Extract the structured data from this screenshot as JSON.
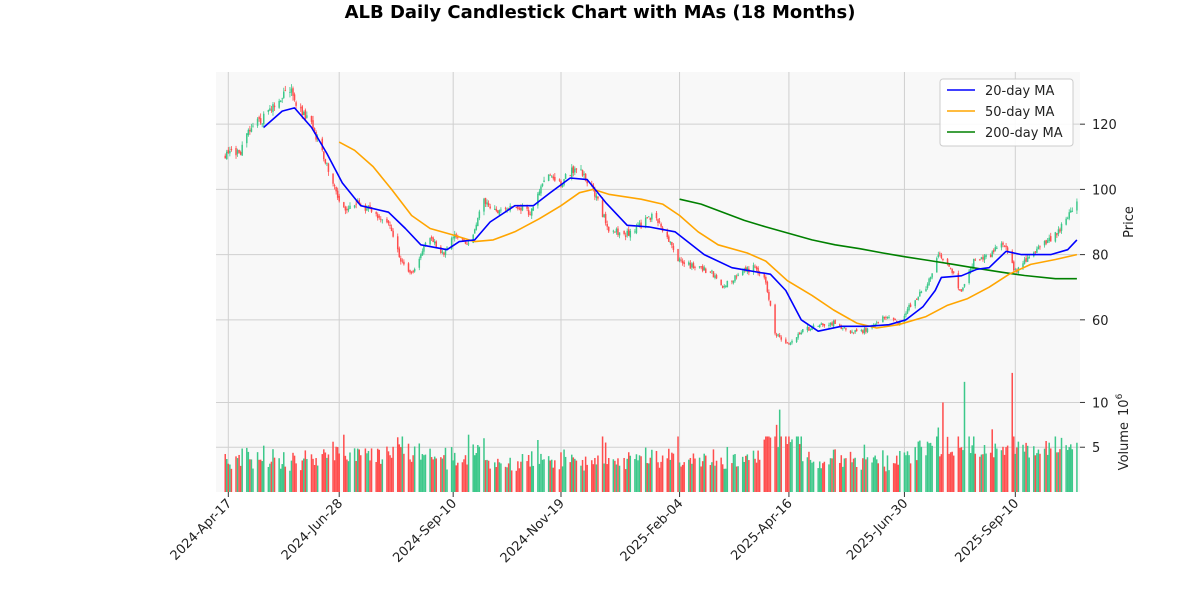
{
  "chart_data": {
    "type": "candlestick",
    "title": "ALB Daily Candlestick Chart with MAs (18 Months)",
    "price_panel": {
      "ylabel": "Price",
      "ylim": [
        44,
        136
      ],
      "yticks": [
        60,
        80,
        100,
        120
      ],
      "grid": true,
      "legend_placement": "top-right"
    },
    "volume_panel": {
      "ylabel": "Volume",
      "ylabel_exponent": "6",
      "units_scale": 1000000,
      "ylim": [
        0,
        13.4
      ],
      "yticks": [
        5,
        10
      ],
      "grid": true
    },
    "x_axis": {
      "range_start": "2024-04-09",
      "range_end": "2025-10-22",
      "ticks": [
        "2024-Apr-17",
        "2024-Jun-28",
        "2024-Sep-10",
        "2024-Nov-19",
        "2025-Feb-04",
        "2025-Apr-16",
        "2025-Jun-30",
        "2025-Sep-10"
      ],
      "tick_dates": [
        "2024-04-17",
        "2024-06-28",
        "2024-09-10",
        "2024-11-19",
        "2025-02-04",
        "2025-04-16",
        "2025-06-30",
        "2025-09-10"
      ]
    },
    "colors": {
      "up": "#3cc88a",
      "down": "#ff4d4d",
      "ma20": "#0000ff",
      "ma50": "#ffa500",
      "ma200": "#008000",
      "panel_bg": "#f8f8f8",
      "grid": "#d0d0d0"
    },
    "close_anchors": [
      [
        "2024-04-15",
        110
      ],
      [
        "2024-04-25",
        112
      ],
      [
        "2024-05-01",
        118
      ],
      [
        "2024-05-10",
        122
      ],
      [
        "2024-05-20",
        128
      ],
      [
        "2024-05-27",
        131
      ],
      [
        "2024-06-03",
        124
      ],
      [
        "2024-06-10",
        120
      ],
      [
        "2024-06-17",
        112
      ],
      [
        "2024-06-24",
        101
      ],
      [
        "2024-07-01",
        94
      ],
      [
        "2024-07-10",
        96
      ],
      [
        "2024-07-20",
        93
      ],
      [
        "2024-07-30",
        90
      ],
      [
        "2024-08-07",
        78
      ],
      [
        "2024-08-15",
        74
      ],
      [
        "2024-08-25",
        86
      ],
      [
        "2024-09-04",
        80
      ],
      [
        "2024-09-10",
        86
      ],
      [
        "2024-09-20",
        83
      ],
      [
        "2024-09-30",
        96
      ],
      [
        "2024-10-10",
        93
      ],
      [
        "2024-10-20",
        95
      ],
      [
        "2024-10-30",
        93
      ],
      [
        "2024-11-08",
        104
      ],
      [
        "2024-11-19",
        102
      ],
      [
        "2024-11-29",
        107
      ],
      [
        "2024-12-06",
        103
      ],
      [
        "2024-12-13",
        96
      ],
      [
        "2024-12-20",
        88
      ],
      [
        "2024-12-31",
        86
      ],
      [
        "2025-01-10",
        89
      ],
      [
        "2025-01-17",
        92
      ],
      [
        "2025-01-24",
        88
      ],
      [
        "2025-02-04",
        78
      ],
      [
        "2025-02-14",
        76
      ],
      [
        "2025-02-24",
        75
      ],
      [
        "2025-03-04",
        70
      ],
      [
        "2025-03-14",
        74
      ],
      [
        "2025-03-24",
        76
      ],
      [
        "2025-04-01",
        72
      ],
      [
        "2025-04-07",
        56
      ],
      [
        "2025-04-16",
        52
      ],
      [
        "2025-04-25",
        57
      ],
      [
        "2025-05-05",
        58
      ],
      [
        "2025-05-15",
        59
      ],
      [
        "2025-05-27",
        56
      ],
      [
        "2025-06-06",
        57
      ],
      [
        "2025-06-16",
        61
      ],
      [
        "2025-06-26",
        59
      ],
      [
        "2025-07-03",
        64
      ],
      [
        "2025-07-14",
        70
      ],
      [
        "2025-07-22",
        80
      ],
      [
        "2025-07-30",
        76
      ],
      [
        "2025-08-06",
        68
      ],
      [
        "2025-08-14",
        78
      ],
      [
        "2025-08-25",
        80
      ],
      [
        "2025-09-02",
        84
      ],
      [
        "2025-09-10",
        75
      ],
      [
        "2025-09-18",
        79
      ],
      [
        "2025-09-26",
        82
      ],
      [
        "2025-10-06",
        86
      ],
      [
        "2025-10-13",
        91
      ],
      [
        "2025-10-20",
        97
      ]
    ],
    "ma_20": [
      [
        "2024-05-10",
        119
      ],
      [
        "2024-05-22",
        124
      ],
      [
        "2024-05-30",
        125
      ],
      [
        "2024-06-10",
        119
      ],
      [
        "2024-06-20",
        111
      ],
      [
        "2024-06-30",
        102
      ],
      [
        "2024-07-12",
        95
      ],
      [
        "2024-07-30",
        93
      ],
      [
        "2024-08-10",
        88
      ],
      [
        "2024-08-20",
        83
      ],
      [
        "2024-09-06",
        81.5
      ],
      [
        "2024-09-14",
        84
      ],
      [
        "2024-09-24",
        84.5
      ],
      [
        "2024-10-04",
        90
      ],
      [
        "2024-10-20",
        95
      ],
      [
        "2024-11-01",
        95
      ],
      [
        "2024-11-12",
        99
      ],
      [
        "2024-11-25",
        103.5
      ],
      [
        "2024-12-06",
        103
      ],
      [
        "2024-12-18",
        96
      ],
      [
        "2025-01-01",
        89
      ],
      [
        "2025-01-15",
        88.5
      ],
      [
        "2025-02-01",
        87
      ],
      [
        "2025-02-20",
        80
      ],
      [
        "2025-03-10",
        76
      ],
      [
        "2025-03-28",
        74.5
      ],
      [
        "2025-04-04",
        74
      ],
      [
        "2025-04-14",
        69
      ],
      [
        "2025-04-24",
        60
      ],
      [
        "2025-05-05",
        56.5
      ],
      [
        "2025-05-20",
        58
      ],
      [
        "2025-06-06",
        58
      ],
      [
        "2025-06-20",
        58.5
      ],
      [
        "2025-07-01",
        60
      ],
      [
        "2025-07-12",
        64
      ],
      [
        "2025-07-20",
        69
      ],
      [
        "2025-07-24",
        73
      ],
      [
        "2025-08-06",
        73.5
      ],
      [
        "2025-08-16",
        75.5
      ],
      [
        "2025-08-24",
        76
      ],
      [
        "2025-09-04",
        81
      ],
      [
        "2025-09-14",
        80
      ],
      [
        "2025-10-03",
        80
      ],
      [
        "2025-10-14",
        81.5
      ],
      [
        "2025-10-20",
        84.5
      ]
    ],
    "ma_50": [
      [
        "2024-06-28",
        114.5
      ],
      [
        "2024-07-08",
        112
      ],
      [
        "2024-07-20",
        107
      ],
      [
        "2024-08-01",
        100
      ],
      [
        "2024-08-14",
        92
      ],
      [
        "2024-08-26",
        88
      ],
      [
        "2024-09-10",
        86
      ],
      [
        "2024-09-24",
        84
      ],
      [
        "2024-10-06",
        84.5
      ],
      [
        "2024-10-20",
        87
      ],
      [
        "2024-11-05",
        91
      ],
      [
        "2024-11-19",
        95
      ],
      [
        "2024-12-01",
        99
      ],
      [
        "2024-12-10",
        100
      ],
      [
        "2024-12-20",
        98.5
      ],
      [
        "2025-01-10",
        97
      ],
      [
        "2025-01-24",
        95.5
      ],
      [
        "2025-02-04",
        92
      ],
      [
        "2025-02-16",
        87
      ],
      [
        "2025-03-01",
        83
      ],
      [
        "2025-03-20",
        80.5
      ],
      [
        "2025-04-01",
        78
      ],
      [
        "2025-04-15",
        72
      ],
      [
        "2025-05-01",
        67.5
      ],
      [
        "2025-05-15",
        63
      ],
      [
        "2025-05-30",
        59
      ],
      [
        "2025-06-12",
        57.5
      ],
      [
        "2025-06-26",
        58.5
      ],
      [
        "2025-07-14",
        61
      ],
      [
        "2025-07-28",
        64.5
      ],
      [
        "2025-08-10",
        66.5
      ],
      [
        "2025-08-24",
        70
      ],
      [
        "2025-09-06",
        74
      ],
      [
        "2025-09-20",
        77
      ],
      [
        "2025-10-06",
        78.5
      ],
      [
        "2025-10-20",
        80
      ]
    ],
    "ma_200": [
      [
        "2025-02-04",
        97
      ],
      [
        "2025-02-18",
        95.5
      ],
      [
        "2025-03-04",
        93
      ],
      [
        "2025-03-18",
        90.5
      ],
      [
        "2025-04-01",
        88.5
      ],
      [
        "2025-04-16",
        86.5
      ],
      [
        "2025-05-01",
        84.5
      ],
      [
        "2025-05-16",
        83
      ],
      [
        "2025-06-01",
        81.8
      ],
      [
        "2025-06-16",
        80.5
      ],
      [
        "2025-07-01",
        79.3
      ],
      [
        "2025-07-16",
        78.2
      ],
      [
        "2025-08-01",
        77
      ],
      [
        "2025-08-16",
        75.8
      ],
      [
        "2025-09-01",
        74.6
      ],
      [
        "2025-09-16",
        73.6
      ],
      [
        "2025-10-06",
        72.6
      ],
      [
        "2025-10-20",
        72.6
      ]
    ],
    "volume_spikes": [
      [
        "2025-04-10",
        9.2,
        "up"
      ],
      [
        "2025-05-25",
        11.0,
        "down"
      ],
      [
        "2025-07-25",
        10.0,
        "down"
      ],
      [
        "2025-08-08",
        12.3,
        "up"
      ],
      [
        "2025-09-08",
        13.3,
        "down"
      ],
      [
        "2025-04-08",
        7.5,
        "down"
      ],
      [
        "2024-08-08",
        6.2,
        "up"
      ],
      [
        "2024-09-20",
        6.4,
        "up"
      ],
      [
        "2024-07-01",
        6.4,
        "down"
      ],
      [
        "2025-07-22",
        7.2,
        "up"
      ],
      [
        "2025-08-26",
        7.0,
        "down"
      ],
      [
        "2025-10-20",
        5.5,
        "up"
      ]
    ],
    "legend": [
      {
        "label": "20-day MA",
        "color": "#0000ff"
      },
      {
        "label": "50-day MA",
        "color": "#ffa500"
      },
      {
        "label": "200-day MA",
        "color": "#008000"
      }
    ]
  }
}
